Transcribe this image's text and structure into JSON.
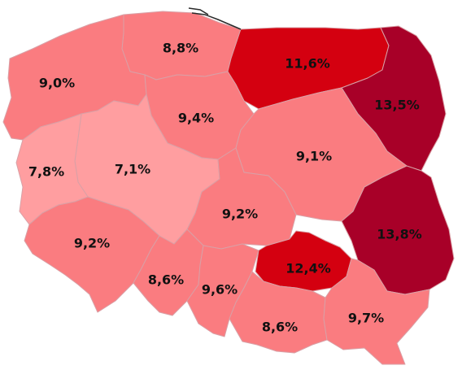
{
  "colors": {
    "low": "#ff9ea0",
    "mid": "#fa7c80",
    "high": "#d40010",
    "very_high": "#a80028",
    "border": "#d9a0a6",
    "coast": "#2a2a2a"
  },
  "regions": [
    {
      "id": "pomorskie",
      "value": "8,8%",
      "level": "mid"
    },
    {
      "id": "warminsko-mazurskie",
      "value": "11,6%",
      "level": "high"
    },
    {
      "id": "podlaskie",
      "value": "13,5%",
      "level": "very_high"
    },
    {
      "id": "zachodniopomorskie",
      "value": "9,0%",
      "level": "mid"
    },
    {
      "id": "kujawsko-pomorskie",
      "value": "9,4%",
      "level": "mid"
    },
    {
      "id": "wielkopolskie",
      "value": "7,1%",
      "level": "low"
    },
    {
      "id": "lubuskie",
      "value": "7,8%",
      "level": "low"
    },
    {
      "id": "mazowieckie",
      "value": "9,1%",
      "level": "mid"
    },
    {
      "id": "lodzkie",
      "value": "9,2%",
      "level": "mid"
    },
    {
      "id": "lubelskie",
      "value": "13,8%",
      "level": "very_high"
    },
    {
      "id": "dolnoslaskie",
      "value": "9,2%",
      "level": "mid"
    },
    {
      "id": "opolskie",
      "value": "8,6%",
      "level": "mid"
    },
    {
      "id": "slaskie",
      "value": "9,6%",
      "level": "mid"
    },
    {
      "id": "swietokrzyskie",
      "value": "12,4%",
      "level": "high"
    },
    {
      "id": "malopolskie",
      "value": "8,6%",
      "level": "mid"
    },
    {
      "id": "podkarpackie",
      "value": "9,7%",
      "level": "mid"
    }
  ]
}
